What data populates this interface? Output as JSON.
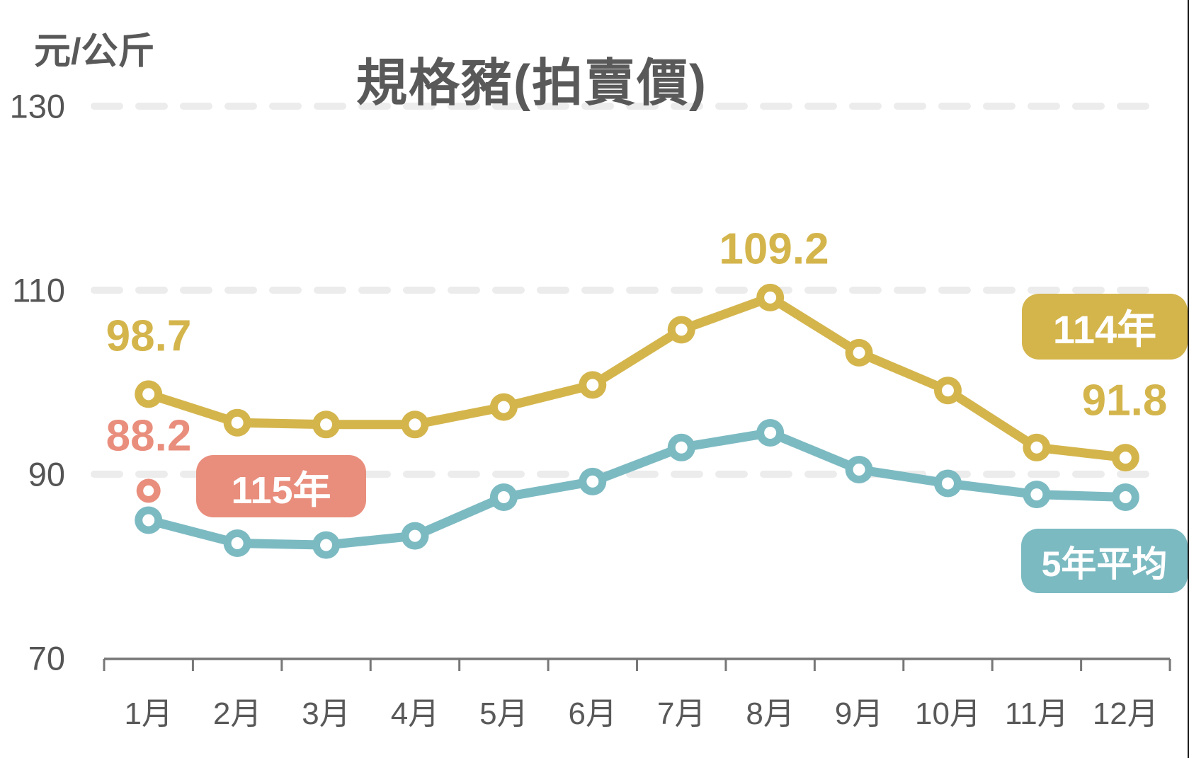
{
  "title": "規格豬(拍賣價)",
  "y_axis": {
    "unit_label": "元/公斤",
    "ticks": [
      "130",
      "110",
      "90",
      "70"
    ]
  },
  "x_axis": {
    "months": [
      "1月",
      "2月",
      "3月",
      "4月",
      "5月",
      "6月",
      "7月",
      "8月",
      "9月",
      "10月",
      "11月",
      "12月"
    ]
  },
  "legend": [
    {
      "label": "114年",
      "color": "#D4B54C"
    },
    {
      "label": "115年",
      "color": "#E98E7D"
    },
    {
      "label": "5年平均",
      "color": "#7CBAC2"
    }
  ],
  "annotations": {
    "jan_114": "98.7",
    "jan_115": "88.2",
    "aug_114": "109.2",
    "dec_114": "91.8"
  },
  "colors": {
    "gold": "#D4B54C",
    "teal": "#7CBAC2",
    "salmon": "#E98E7D",
    "title_gray": "#595959",
    "tick_gray": "#555555",
    "gridline": "#ECECEC",
    "axis": "#777777"
  },
  "chart_data": {
    "type": "line",
    "title": "規格豬(拍賣價)",
    "ylabel": "元/公斤",
    "ylim": [
      70,
      130
    ],
    "yticks": [
      130,
      110,
      90,
      70
    ],
    "grid": "horizontal dashed at 130/110/90",
    "legend_position": "right edge chips (114年, 5年平均) and inline chip (115年)",
    "categories": [
      "1月",
      "2月",
      "3月",
      "4月",
      "5月",
      "6月",
      "7月",
      "8月",
      "9月",
      "10月",
      "11月",
      "12月"
    ],
    "series": [
      {
        "name": "114年",
        "color": "#D4B54C",
        "values": [
          98.7,
          95.6,
          95.4,
          95.4,
          97.3,
          99.7,
          105.7,
          109.2,
          103.2,
          99.1,
          92.9,
          91.8
        ],
        "labeled_points": {
          "1月": 98.7,
          "8月": 109.2,
          "12月": 91.8
        }
      },
      {
        "name": "5年平均",
        "color": "#7CBAC2",
        "values": [
          85.0,
          82.5,
          82.3,
          83.3,
          87.5,
          89.2,
          92.9,
          94.5,
          90.5,
          89.0,
          87.8,
          87.5
        ],
        "labeled_points": {}
      },
      {
        "name": "115年",
        "color": "#E98E7D",
        "values": [
          88.2
        ],
        "labeled_points": {
          "1月": 88.2
        }
      }
    ]
  }
}
